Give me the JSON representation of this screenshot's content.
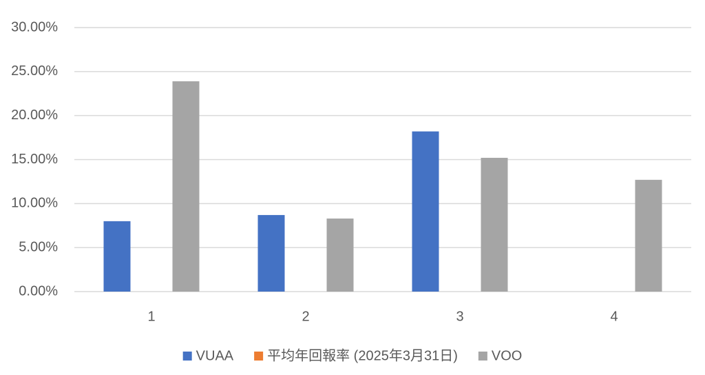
{
  "chart_data": {
    "type": "bar",
    "categories": [
      "1",
      "2",
      "3",
      "4"
    ],
    "series": [
      {
        "name": "VUAA",
        "color": "#4472c4",
        "values": [
          8.0,
          8.7,
          18.2,
          null
        ]
      },
      {
        "name": "平均年回報率 (2025年3月31日)",
        "color": "#ed7d31",
        "values": [
          null,
          null,
          null,
          null
        ]
      },
      {
        "name": "VOO",
        "color": "#a5a5a5",
        "values": [
          23.9,
          8.3,
          15.2,
          12.7
        ]
      }
    ],
    "ylim": [
      0,
      30
    ],
    "yticks": [
      {
        "value": 0,
        "label": "0.00%"
      },
      {
        "value": 5,
        "label": "5.00%"
      },
      {
        "value": 10,
        "label": "10.00%"
      },
      {
        "value": 15,
        "label": "15.00%"
      },
      {
        "value": 20,
        "label": "20.00%"
      },
      {
        "value": 25,
        "label": "25.00%"
      },
      {
        "value": 30,
        "label": "30.00%"
      }
    ],
    "grid": true,
    "legend": "bottom"
  }
}
